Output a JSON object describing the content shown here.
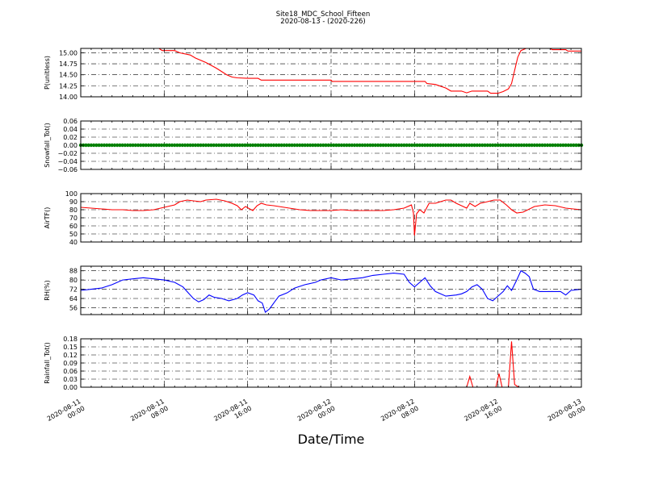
{
  "title": "Site18_MDC_School_Fifteen",
  "subtitle": "2020-08-13 - (2020-226)",
  "xlabel": "Date/Time",
  "x_ticks": [
    {
      "line1": "2020-08-11",
      "line2": "00:00",
      "hour": 0
    },
    {
      "line1": "2020-08-11",
      "line2": "08:00",
      "hour": 8
    },
    {
      "line1": "2020-08-11",
      "line2": "16:00",
      "hour": 16
    },
    {
      "line1": "2020-08-12",
      "line2": "00:00",
      "hour": 24
    },
    {
      "line1": "2020-08-12",
      "line2": "08:00",
      "hour": 32
    },
    {
      "line1": "2020-08-12",
      "line2": "16:00",
      "hour": 40
    },
    {
      "line1": "2020-08-13",
      "line2": "00:00",
      "hour": 48
    }
  ],
  "chart_data": [
    {
      "type": "line",
      "ylabel": "P(unitless)",
      "ylim": [
        14.0,
        15.1
      ],
      "yticks": [
        "14.00",
        "14.25",
        "14.50",
        "14.75",
        "15.00"
      ],
      "grid": true,
      "color": "#ff0000",
      "points": [
        [
          0,
          15.1
        ],
        [
          7.5,
          15.1
        ],
        [
          7.8,
          15.05
        ],
        [
          9,
          15.05
        ],
        [
          9.5,
          15.0
        ],
        [
          10.5,
          14.95
        ],
        [
          11,
          14.88
        ],
        [
          12,
          14.78
        ],
        [
          13,
          14.65
        ],
        [
          14,
          14.5
        ],
        [
          14.5,
          14.45
        ],
        [
          15,
          14.43
        ],
        [
          16,
          14.42
        ],
        [
          17,
          14.42
        ],
        [
          17.3,
          14.38
        ],
        [
          24,
          14.38
        ],
        [
          24.1,
          14.35
        ],
        [
          33,
          14.35
        ],
        [
          33.2,
          14.3
        ],
        [
          34,
          14.28
        ],
        [
          35,
          14.2
        ],
        [
          35.5,
          14.13
        ],
        [
          36.5,
          14.13
        ],
        [
          37,
          14.09
        ],
        [
          37.5,
          14.13
        ],
        [
          39,
          14.13
        ],
        [
          39.3,
          14.08
        ],
        [
          40,
          14.08
        ],
        [
          40.5,
          14.12
        ],
        [
          41,
          14.18
        ],
        [
          41.3,
          14.3
        ],
        [
          41.6,
          14.6
        ],
        [
          41.9,
          14.9
        ],
        [
          42.2,
          15.05
        ],
        [
          42.7,
          15.1
        ],
        [
          45,
          15.1
        ],
        [
          45.2,
          15.07
        ],
        [
          46.5,
          15.07
        ],
        [
          46.7,
          15.04
        ],
        [
          48,
          15.04
        ]
      ]
    },
    {
      "type": "scatter",
      "ylabel": "Snowfall_Tot()",
      "ylim": [
        -0.06,
        0.06
      ],
      "yticks": [
        "−0.06",
        "−0.04",
        "−0.02",
        "0.00",
        "0.02",
        "0.04",
        "0.06"
      ],
      "grid": true,
      "color": "#008000",
      "constant_value": 0.0
    },
    {
      "type": "line",
      "ylabel": "AirTF()",
      "ylim": [
        40,
        100
      ],
      "yticks": [
        "40",
        "50",
        "60",
        "70",
        "80",
        "90",
        "100"
      ],
      "grid": true,
      "color": "#ff0000",
      "points": [
        [
          0,
          83
        ],
        [
          1,
          82
        ],
        [
          2,
          81
        ],
        [
          3,
          80
        ],
        [
          4,
          80
        ],
        [
          5,
          79
        ],
        [
          6,
          79
        ],
        [
          7,
          80
        ],
        [
          8,
          83
        ],
        [
          9,
          86
        ],
        [
          9.5,
          90
        ],
        [
          10.2,
          92
        ],
        [
          10.8,
          91
        ],
        [
          11.5,
          90
        ],
        [
          12,
          92
        ],
        [
          13,
          93
        ],
        [
          13.8,
          91
        ],
        [
          14.5,
          88
        ],
        [
          15,
          85
        ],
        [
          15.4,
          80
        ],
        [
          15.8,
          84
        ],
        [
          16.2,
          81
        ],
        [
          16.5,
          79
        ],
        [
          16.9,
          85
        ],
        [
          17.3,
          88
        ],
        [
          17.8,
          86
        ],
        [
          18.5,
          85
        ],
        [
          19,
          84
        ],
        [
          20,
          82
        ],
        [
          21,
          80
        ],
        [
          22,
          79
        ],
        [
          23,
          79
        ],
        [
          24,
          79
        ],
        [
          25,
          80
        ],
        [
          26,
          79
        ],
        [
          27,
          79
        ],
        [
          28,
          79
        ],
        [
          29,
          79
        ],
        [
          30,
          80
        ],
        [
          31,
          82
        ],
        [
          31.7,
          86
        ],
        [
          31.9,
          76
        ],
        [
          32.0,
          48
        ],
        [
          32.2,
          75
        ],
        [
          32.5,
          80
        ],
        [
          32.9,
          76
        ],
        [
          33.4,
          88
        ],
        [
          34,
          88
        ],
        [
          34.5,
          90
        ],
        [
          35,
          92
        ],
        [
          35.5,
          92
        ],
        [
          36,
          88
        ],
        [
          36.5,
          85
        ],
        [
          37,
          82
        ],
        [
          37.3,
          88
        ],
        [
          37.8,
          84
        ],
        [
          38.3,
          88
        ],
        [
          39,
          90
        ],
        [
          39.6,
          92
        ],
        [
          40.2,
          92
        ],
        [
          40.8,
          86
        ],
        [
          41.3,
          80
        ],
        [
          41.8,
          76
        ],
        [
          42.4,
          77
        ],
        [
          43.5,
          84
        ],
        [
          44.5,
          86
        ],
        [
          45.5,
          85
        ],
        [
          46.5,
          82
        ],
        [
          47.2,
          81
        ],
        [
          48,
          80
        ]
      ]
    },
    {
      "type": "line",
      "ylabel": "RH(%)",
      "ylim": [
        50,
        92
      ],
      "yticks": [
        "56",
        "64",
        "72",
        "80",
        "88"
      ],
      "grid": true,
      "color": "#0000ff",
      "points": [
        [
          0,
          71
        ],
        [
          1,
          72
        ],
        [
          2,
          73
        ],
        [
          3,
          76
        ],
        [
          4,
          80
        ],
        [
          5,
          81
        ],
        [
          6,
          82
        ],
        [
          7,
          81
        ],
        [
          8,
          80
        ],
        [
          9,
          78
        ],
        [
          9.8,
          74
        ],
        [
          10.3,
          69
        ],
        [
          10.8,
          64
        ],
        [
          11.3,
          61
        ],
        [
          11.8,
          63
        ],
        [
          12.3,
          67
        ],
        [
          12.8,
          65
        ],
        [
          13.5,
          64
        ],
        [
          14.2,
          62
        ],
        [
          15,
          64
        ],
        [
          15.5,
          67
        ],
        [
          16,
          69
        ],
        [
          16.6,
          67
        ],
        [
          17,
          62
        ],
        [
          17.4,
          60
        ],
        [
          17.7,
          52
        ],
        [
          18.1,
          55
        ],
        [
          18.5,
          60
        ],
        [
          19,
          66
        ],
        [
          19.8,
          69
        ],
        [
          20.5,
          73
        ],
        [
          21.5,
          76
        ],
        [
          22.5,
          78
        ],
        [
          23,
          80
        ],
        [
          24,
          82
        ],
        [
          25,
          80
        ],
        [
          26,
          81
        ],
        [
          27,
          82
        ],
        [
          28,
          84
        ],
        [
          29,
          85
        ],
        [
          30,
          86
        ],
        [
          31,
          85
        ],
        [
          31.5,
          78
        ],
        [
          32,
          74
        ],
        [
          32.5,
          78
        ],
        [
          33,
          82
        ],
        [
          33.5,
          75
        ],
        [
          34,
          70
        ],
        [
          35,
          66
        ],
        [
          36,
          67
        ],
        [
          36.5,
          68
        ],
        [
          37,
          70
        ],
        [
          37.5,
          74
        ],
        [
          38,
          76
        ],
        [
          38.5,
          72
        ],
        [
          39,
          64
        ],
        [
          39.5,
          62
        ],
        [
          40,
          66
        ],
        [
          40.5,
          70
        ],
        [
          40.9,
          75
        ],
        [
          41.3,
          71
        ],
        [
          41.8,
          80
        ],
        [
          42.2,
          88
        ],
        [
          42.6,
          86
        ],
        [
          43,
          83
        ],
        [
          43.4,
          72
        ],
        [
          44,
          70
        ],
        [
          45,
          70
        ],
        [
          46,
          70
        ],
        [
          46.5,
          67
        ],
        [
          47,
          71
        ],
        [
          48,
          72
        ]
      ]
    },
    {
      "type": "line",
      "ylabel": "Rainfall_Tot()",
      "ylim": [
        0.0,
        0.18
      ],
      "yticks": [
        "0.00",
        "0.03",
        "0.06",
        "0.09",
        "0.12",
        "0.15",
        "0.18"
      ],
      "grid": true,
      "color": "#ff0000",
      "points": [
        [
          0,
          0
        ],
        [
          37,
          0
        ],
        [
          37.3,
          0.04
        ],
        [
          37.6,
          0
        ],
        [
          39.8,
          0
        ],
        [
          40.1,
          0.05
        ],
        [
          40.4,
          0
        ],
        [
          41,
          0
        ],
        [
          41.3,
          0.17
        ],
        [
          41.6,
          0.01
        ],
        [
          42,
          0
        ],
        [
          48,
          0
        ]
      ]
    }
  ]
}
